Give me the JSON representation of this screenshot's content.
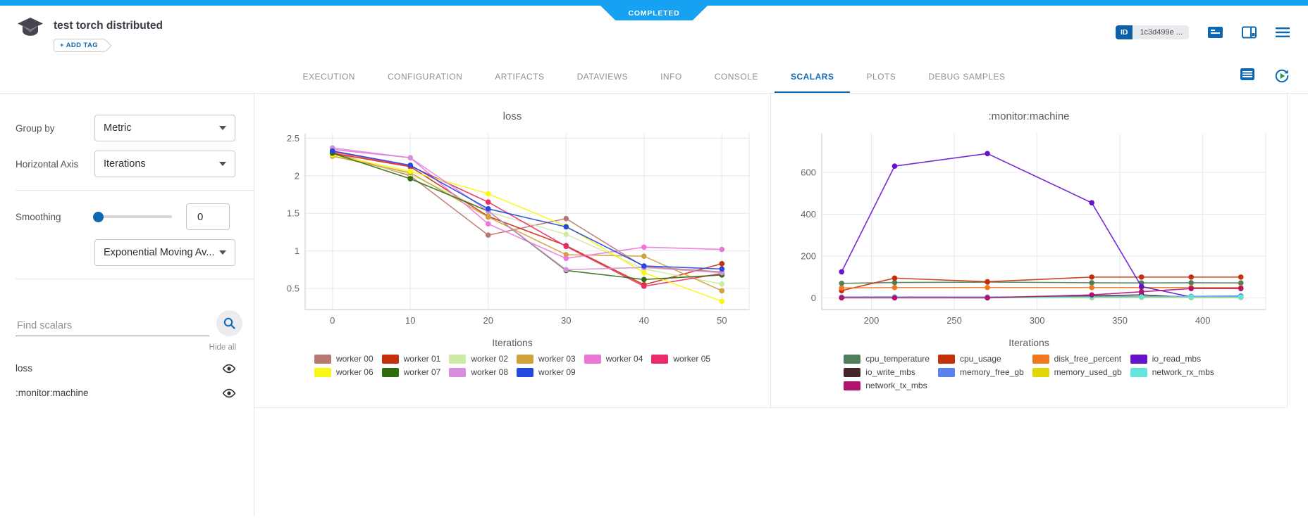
{
  "status_banner": {
    "label": "COMPLETED"
  },
  "header": {
    "title": "test torch distributed",
    "add_tag_label": "+ ADD TAG",
    "id_badge_label": "ID",
    "id_value": "1c3d499e ..."
  },
  "tabs": {
    "items": [
      "EXECUTION",
      "CONFIGURATION",
      "ARTIFACTS",
      "DATAVIEWS",
      "INFO",
      "CONSOLE",
      "SCALARS",
      "PLOTS",
      "DEBUG SAMPLES"
    ],
    "active": "SCALARS"
  },
  "sidebar": {
    "group_by_label": "Group by",
    "group_by_value": "Metric",
    "horizontal_axis_label": "Horizontal Axis",
    "horizontal_axis_value": "Iterations",
    "smoothing_label": "Smoothing",
    "smoothing_value": "0",
    "smoothing_type_value": "Exponential Moving Av...",
    "search_placeholder": "Find scalars",
    "hide_all_label": "Hide all",
    "metrics": [
      {
        "label": "loss"
      },
      {
        "label": ":monitor:machine"
      }
    ]
  },
  "colors": {
    "topbar_blue": "#17a1f2",
    "accent_blue": "#0d68b1",
    "grid_line": "#e7e7f0",
    "axis_line": "#cfcfda",
    "tick_text": "#63636d"
  },
  "chart_data": [
    {
      "type": "line",
      "title": "loss",
      "xlabel": "Iterations",
      "x": [
        0,
        10,
        20,
        30,
        40,
        50
      ],
      "xticks": [
        0,
        10,
        20,
        30,
        40,
        50
      ],
      "yticks": [
        0.5,
        1,
        1.5,
        2,
        2.5
      ],
      "xlim": [
        -3.5,
        53.5
      ],
      "ylim": [
        0.22,
        2.56
      ],
      "grid": true,
      "legend_position": "bottom",
      "legend_columns": 6,
      "series": [
        {
          "name": "worker 00",
          "color": "#b9786f",
          "values": [
            2.31,
            2.0,
            1.21,
            1.43,
            0.79,
            0.72
          ]
        },
        {
          "name": "worker 01",
          "color": "#c5300c",
          "values": [
            2.3,
            2.12,
            1.46,
            1.07,
            0.55,
            0.83
          ]
        },
        {
          "name": "worker 02",
          "color": "#cdeba6",
          "values": [
            2.27,
            2.02,
            1.52,
            1.22,
            0.76,
            0.56
          ]
        },
        {
          "name": "worker 03",
          "color": "#d0a23b",
          "values": [
            2.26,
            2.04,
            1.45,
            0.95,
            0.93,
            0.47
          ]
        },
        {
          "name": "worker 04",
          "color": "#ec77d7",
          "values": [
            2.35,
            2.24,
            1.36,
            0.9,
            1.05,
            1.02
          ]
        },
        {
          "name": "worker 05",
          "color": "#ea2e69",
          "values": [
            2.32,
            2.13,
            1.65,
            1.06,
            0.53,
            0.7
          ]
        },
        {
          "name": "worker 06",
          "color": "#f8f713",
          "values": [
            2.28,
            2.06,
            1.76,
            1.33,
            0.71,
            0.33
          ]
        },
        {
          "name": "worker 07",
          "color": "#316c10",
          "values": [
            2.3,
            1.96,
            1.53,
            0.74,
            0.62,
            0.68
          ]
        },
        {
          "name": "worker 08",
          "color": "#d78fdb",
          "values": [
            2.37,
            2.24,
            1.53,
            0.75,
            0.78,
            0.71
          ]
        },
        {
          "name": "worker 09",
          "color": "#2448e0",
          "values": [
            2.33,
            2.14,
            1.56,
            1.32,
            0.8,
            0.76
          ]
        }
      ]
    },
    {
      "type": "line",
      "title": ":monitor:machine",
      "xlabel": "Iterations",
      "x": [
        182,
        214,
        270,
        333,
        363,
        393,
        423
      ],
      "xticks": [
        200,
        250,
        300,
        350,
        400
      ],
      "yticks": [
        0,
        200,
        400,
        600
      ],
      "xlim": [
        170,
        438
      ],
      "ylim": [
        -55,
        785
      ],
      "grid": true,
      "legend_position": "bottom",
      "legend_columns": 4,
      "series": [
        {
          "name": "cpu_temperature",
          "color": "#507d5c",
          "values": [
            70,
            74,
            76,
            73,
            72,
            73,
            72
          ]
        },
        {
          "name": "cpu_usage",
          "color": "#c5300c",
          "values": [
            35,
            95,
            78,
            100,
            100,
            100,
            100
          ]
        },
        {
          "name": "disk_free_percent",
          "color": "#f0791f",
          "values": [
            48,
            50,
            50,
            50,
            50,
            50,
            50
          ]
        },
        {
          "name": "io_read_mbs",
          "color": "#6613cf",
          "values": [
            125,
            630,
            690,
            455,
            55,
            5,
            8
          ]
        },
        {
          "name": "io_write_mbs",
          "color": "#44262c",
          "values": [
            2,
            2,
            1,
            10,
            15,
            3,
            3
          ]
        },
        {
          "name": "memory_free_gb",
          "color": "#5a83f0",
          "values": [
            5,
            5,
            5,
            6,
            6,
            8,
            10
          ]
        },
        {
          "name": "memory_used_gb",
          "color": "#e0d505",
          "values": [
            1,
            2,
            2,
            2,
            3,
            3,
            3
          ]
        },
        {
          "name": "network_rx_mbs",
          "color": "#63e5dc",
          "values": [
            3,
            3,
            2,
            4,
            5,
            5,
            5
          ]
        },
        {
          "name": "network_tx_mbs",
          "color": "#b01371",
          "values": [
            1,
            1,
            1,
            15,
            30,
            45,
            45
          ]
        }
      ]
    }
  ]
}
